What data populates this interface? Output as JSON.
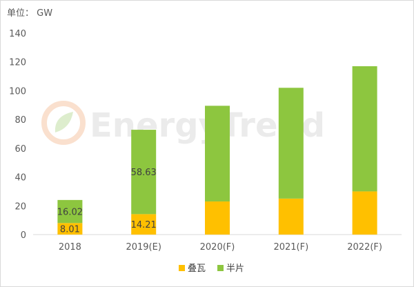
{
  "unit_label": "单位： GW",
  "watermark": "EnergyTrend",
  "chart_data": {
    "type": "bar",
    "stacked": true,
    "categories": [
      "2018",
      "2019(E)",
      "2020(F)",
      "2021(F)",
      "2022(F)"
    ],
    "series": [
      {
        "name": "叠瓦",
        "color": "#ffc000",
        "values": [
          8.01,
          14.21,
          23,
          25,
          30
        ]
      },
      {
        "name": "半片",
        "color": "#8dc63f",
        "values": [
          16.02,
          58.63,
          66.5,
          77,
          87
        ]
      }
    ],
    "data_labels": [
      {
        "series": 0,
        "index": 0,
        "text": "8.01"
      },
      {
        "series": 1,
        "index": 0,
        "text": "16.02"
      },
      {
        "series": 0,
        "index": 1,
        "text": "14.21"
      },
      {
        "series": 1,
        "index": 1,
        "text": "58.63"
      }
    ],
    "yticks": [
      0,
      20,
      40,
      60,
      80,
      100,
      120,
      140
    ],
    "ylim": [
      0,
      140
    ],
    "legend_position": "bottom",
    "grid": false
  }
}
